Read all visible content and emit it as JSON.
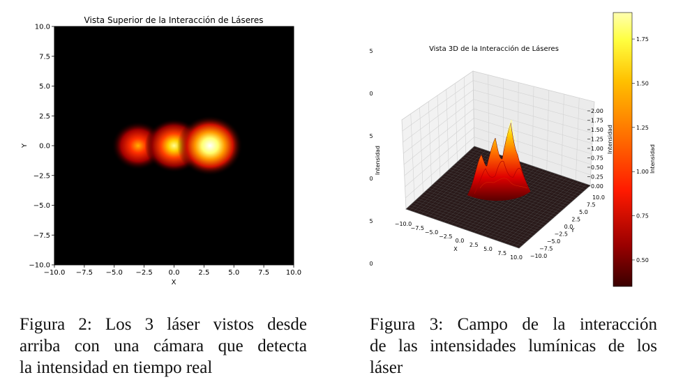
{
  "figure_left": {
    "title": "Vista Superior de la Interacción de Láseres",
    "xlabel": "X",
    "ylabel": "Y",
    "xticks": [
      "−10.0",
      "−7.5",
      "−5.0",
      "−2.5",
      "0.0",
      "2.5",
      "5.0",
      "7.5",
      "10.0"
    ],
    "yticks": [
      "10.0",
      "7.5",
      "5.0",
      "2.5",
      "0.0",
      "−2.5",
      "−5.0",
      "−7.5",
      "−10.0"
    ]
  },
  "figure_right": {
    "title": "Vista 3D de la Interacción de Láseres",
    "xlabel": "X",
    "ylabel": "Y",
    "zlabel": "Intensidad",
    "colorbar_label": "Intensidad",
    "left_stub_label": "Intensidad",
    "left_stub_ticks": [
      "5",
      "0",
      "5",
      "0",
      "5",
      "0"
    ],
    "xticks": [
      "−10.0",
      "−7.5",
      "−5.0",
      "−2.5",
      "0.0",
      "2.5",
      "5.0",
      "7.5",
      "10.0"
    ],
    "yticks": [
      "10.0",
      "7.5",
      "5.0",
      "2.5",
      "0.0",
      "−2.5",
      "−5.0",
      "−7.5",
      "−10.0"
    ],
    "zticks": [
      "2.00",
      "1.75",
      "1.50",
      "1.25",
      "1.00",
      "0.75",
      "0.50",
      "0.25",
      "0.00"
    ],
    "colorbar_ticks": [
      "1.75",
      "1.50",
      "1.25",
      "1.00",
      "0.75",
      "0.50"
    ]
  },
  "chart_data": [
    {
      "type": "heatmap",
      "title": "Vista Superior de la Interacción de Láseres",
      "xlabel": "X",
      "ylabel": "Y",
      "xlim": [
        -10,
        10
      ],
      "ylim": [
        -10,
        10
      ],
      "colormap": "hot",
      "sources": [
        {
          "x": -3,
          "y": 0,
          "intensity": 1.0
        },
        {
          "x": 0,
          "y": 0,
          "intensity": 1.4
        },
        {
          "x": 3,
          "y": 0,
          "intensity": 1.9
        }
      ]
    },
    {
      "type": "area",
      "title": "Vista 3D de la Interacción de Láseres",
      "xlabel": "X",
      "ylabel": "Y",
      "zlabel": "Intensidad",
      "xlim": [
        -10,
        10
      ],
      "ylim": [
        -10,
        10
      ],
      "zlim": [
        0,
        2.0
      ],
      "colormap": "hot",
      "colorbar_range": [
        0.35,
        1.9
      ]
    }
  ],
  "captions": {
    "fig2": [
      "Figura 2: Los 3 láser vistos desde",
      "arriba con una cámara que detecta",
      "la intensidad en tiempo real"
    ],
    "fig3": [
      "Figura 3: Campo de la interacción",
      "de las intensidades lumínicas de los",
      "láser"
    ]
  }
}
